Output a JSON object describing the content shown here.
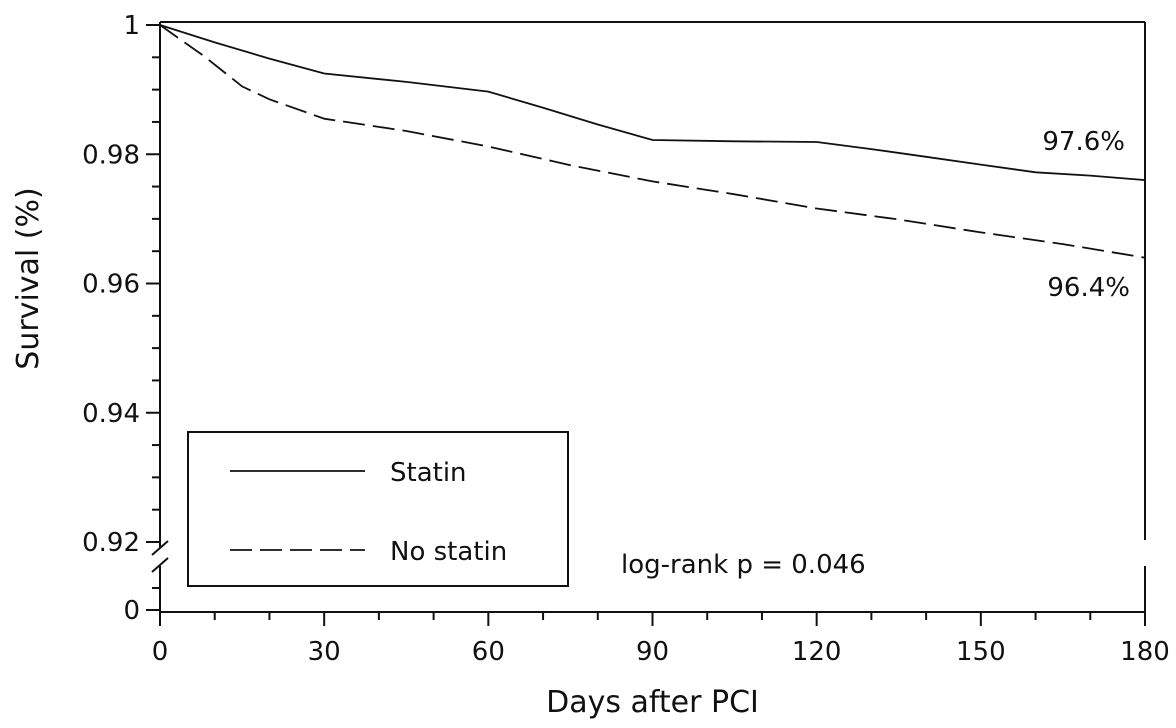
{
  "chart_data": {
    "type": "line",
    "xlabel": "Days after PCI",
    "ylabel": "Survival (%)",
    "xlim": [
      0,
      180
    ],
    "ylim": [
      0.9185,
      1
    ],
    "axis_break": {
      "below": 0.92,
      "bottom_tick": 0
    },
    "x_ticks": [
      0,
      30,
      60,
      90,
      120,
      150,
      180
    ],
    "x_tick_labels": [
      "0",
      "30",
      "60",
      "90",
      "120",
      "150",
      "180"
    ],
    "y_ticks": [
      0.92,
      0.94,
      0.96,
      0.98,
      1
    ],
    "y_tick_labels": [
      "0.92",
      "0.94",
      "0.96",
      "0.98",
      "1"
    ],
    "y_bottom_label": "0",
    "grid": false,
    "legend_position": "bottom-left",
    "series": [
      {
        "name": "Statin",
        "style": "solid",
        "x": [
          0,
          10,
          20,
          30,
          45,
          60,
          70,
          80,
          90,
          105,
          120,
          130,
          140,
          150,
          160,
          170,
          180
        ],
        "y": [
          1.0,
          0.9973,
          0.9948,
          0.9925,
          0.9912,
          0.9897,
          0.9872,
          0.9846,
          0.9822,
          0.982,
          0.9819,
          0.9808,
          0.9796,
          0.9784,
          0.9772,
          0.9767,
          0.976
        ],
        "end_label": "97.6%"
      },
      {
        "name": "No statin",
        "style": "dashed",
        "x": [
          0,
          8,
          15,
          20,
          30,
          45,
          60,
          75,
          90,
          105,
          120,
          135,
          150,
          165,
          180
        ],
        "y": [
          1.0,
          0.9952,
          0.9905,
          0.9885,
          0.9855,
          0.9836,
          0.9812,
          0.9783,
          0.9758,
          0.9738,
          0.9716,
          0.9699,
          0.9679,
          0.9661,
          0.964
        ],
        "end_label": "96.4%"
      }
    ],
    "annotations": [
      {
        "text": "log-rank p = 0.046",
        "x": 84,
        "y": 0.9215
      }
    ]
  }
}
